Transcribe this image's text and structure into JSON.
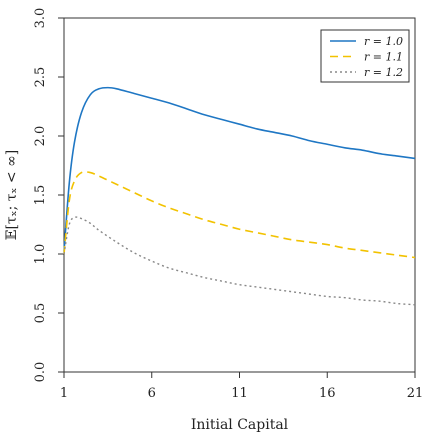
{
  "chart_data": {
    "type": "line",
    "title": "",
    "xlabel": "Initial Capital",
    "ylabel": "𝔼[τₓ; τₓ < ∞]",
    "xlim": [
      1,
      21
    ],
    "ylim": [
      0,
      3
    ],
    "xticks": [
      1,
      6,
      11,
      16,
      21
    ],
    "yticks": [
      0.0,
      0.5,
      1.0,
      1.5,
      2.0,
      2.5,
      3.0
    ],
    "xtick_labels": [
      "1",
      "6",
      "11",
      "16",
      "21"
    ],
    "ytick_labels": [
      "0.0",
      "0.5",
      "1.0",
      "1.5",
      "2.0",
      "2.5",
      "3.0"
    ],
    "grid": false,
    "legend_position": "top-right",
    "series": [
      {
        "name": "r = 1.0",
        "color": "#1f77c4",
        "style": "solid",
        "x": [
          1,
          1.3,
          1.6,
          2,
          2.5,
          3,
          3.5,
          4,
          5,
          6,
          7,
          8,
          9,
          10,
          11,
          12,
          13,
          14,
          15,
          16,
          17,
          18,
          19,
          20,
          21
        ],
        "y": [
          1.02,
          1.6,
          1.95,
          2.2,
          2.35,
          2.4,
          2.41,
          2.4,
          2.36,
          2.32,
          2.28,
          2.23,
          2.18,
          2.14,
          2.1,
          2.06,
          2.03,
          2.0,
          1.96,
          1.93,
          1.9,
          1.88,
          1.85,
          1.83,
          1.81
        ]
      },
      {
        "name": "r = 1.1",
        "color": "#f2c200",
        "style": "dashed",
        "x": [
          1,
          1.3,
          1.6,
          2,
          2.5,
          3,
          4,
          5,
          6,
          7,
          8,
          9,
          10,
          11,
          12,
          13,
          14,
          15,
          16,
          17,
          18,
          19,
          20,
          21
        ],
        "y": [
          1.0,
          1.45,
          1.62,
          1.69,
          1.69,
          1.66,
          1.59,
          1.52,
          1.45,
          1.39,
          1.34,
          1.29,
          1.25,
          1.21,
          1.18,
          1.15,
          1.12,
          1.1,
          1.08,
          1.05,
          1.03,
          1.01,
          0.99,
          0.97
        ]
      },
      {
        "name": "r = 1.2",
        "color": "#888888",
        "style": "dotted",
        "x": [
          1,
          1.3,
          1.6,
          2,
          2.5,
          3,
          4,
          5,
          6,
          7,
          8,
          9,
          10,
          11,
          12,
          13,
          14,
          15,
          16,
          17,
          18,
          19,
          20,
          21
        ],
        "y": [
          1.0,
          1.25,
          1.31,
          1.3,
          1.26,
          1.2,
          1.1,
          1.01,
          0.94,
          0.88,
          0.84,
          0.8,
          0.77,
          0.74,
          0.72,
          0.7,
          0.68,
          0.66,
          0.64,
          0.63,
          0.61,
          0.6,
          0.58,
          0.57
        ]
      }
    ]
  }
}
